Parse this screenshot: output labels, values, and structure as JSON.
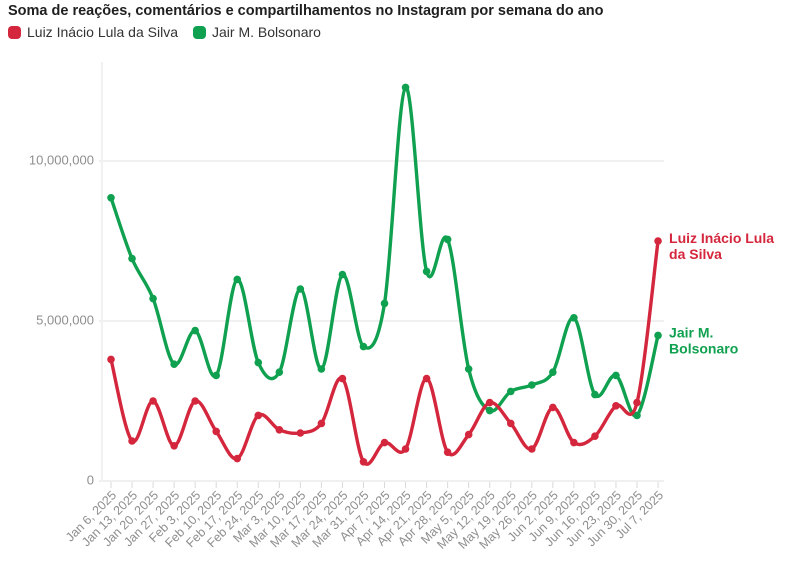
{
  "header": {
    "title": "Soma de reações, comentários e compartilhamentos no Instagram por semana do ano"
  },
  "chart_data": {
    "type": "line",
    "title": "Soma de reações, comentários e compartilhamentos no Instagram por semana do ano",
    "x": [
      "Jan 6, 2025",
      "Jan 13, 2025",
      "Jan 20, 2025",
      "Jan 27, 2025",
      "Feb 3, 2025",
      "Feb 10, 2025",
      "Feb 17, 2025",
      "Feb 24, 2025",
      "Mar 3, 2025",
      "Mar 10, 2025",
      "Mar 17, 2025",
      "Mar 24, 2025",
      "Mar 31, 2025",
      "Apr 7, 2025",
      "Apr 14, 2025",
      "Apr 21, 2025",
      "Apr 28, 2025",
      "May 5, 2025",
      "May 12, 2025",
      "May 19, 2025",
      "May 26, 2025",
      "Jun 2, 2025",
      "Jun 9, 2025",
      "Jun 16, 2025",
      "Jun 23, 2025",
      "Jun 30, 2025",
      "Jul 7, 2025"
    ],
    "series": [
      {
        "name": "Luiz Inácio Lula da Silva",
        "color": "#d4263c",
        "end_label_lines": [
          "Luiz Inácio Lula",
          "da Silva"
        ],
        "values": [
          3800000,
          1250000,
          2500000,
          1100000,
          2500000,
          1550000,
          700000,
          2050000,
          1600000,
          1500000,
          1800000,
          3200000,
          600000,
          1200000,
          1000000,
          3200000,
          900000,
          1450000,
          2450000,
          1800000,
          1000000,
          2300000,
          1200000,
          1400000,
          2350000,
          2450000,
          7500000
        ]
      },
      {
        "name": "Jair M. Bolsonaro",
        "color": "#10a150",
        "end_label_lines": [
          "Jair M.",
          "Bolsonaro"
        ],
        "values": [
          8850000,
          6950000,
          5700000,
          3650000,
          4700000,
          3300000,
          6300000,
          3700000,
          3400000,
          6000000,
          3500000,
          6450000,
          4200000,
          5550000,
          12300000,
          6550000,
          7550000,
          3500000,
          2200000,
          2800000,
          3000000,
          3400000,
          5100000,
          2700000,
          3300000,
          2050000,
          4550000
        ]
      }
    ],
    "y_axis": {
      "ticks": [
        0,
        5000000,
        10000000
      ],
      "tick_labels": [
        "0",
        "5,000,000",
        "10,000,000"
      ],
      "range": [
        0,
        12500000
      ]
    },
    "x_axis": {
      "label_rotation_deg": -45
    },
    "grid": "horizontal",
    "legend_position": "top",
    "curve": "smooth",
    "markers": true
  },
  "style": {
    "grid_color": "#ececec",
    "axis_line_color": "#f1f1f1",
    "tick_color": "#d9d9d9",
    "axis_text_color": "#8e8e8e"
  }
}
